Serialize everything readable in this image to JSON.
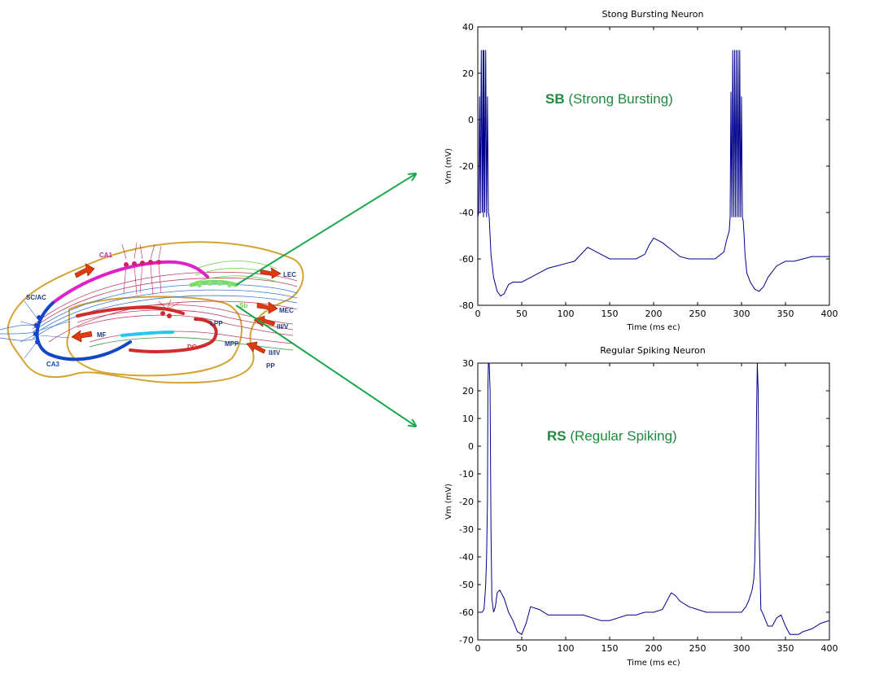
{
  "hippocampus": {
    "labels": {
      "ca1": "CA1",
      "ca3": "CA3",
      "dg": "DG",
      "scac": "SC/AC",
      "mf": "MF",
      "lpp": "LPP",
      "mpp": "MPP",
      "lec": "LEC",
      "mec": "MEC",
      "iiiv": "III/V",
      "iiiv2": "II/IV",
      "pp": "PP",
      "sb": "Sb"
    },
    "colors": {
      "outline": "#d4a332",
      "ca1": "#e020c8",
      "ca3": "#1446c8",
      "dg": "#d02c2c",
      "mossy": "#22c8f0",
      "subiculum": "#7ada6a",
      "arrow": "#e03a10",
      "connector": "#18a84a"
    }
  },
  "annotations": {
    "sb_abbr": "SB",
    "sb_text": " (Strong Bursting)",
    "rs_abbr": "RS",
    "rs_text": " (Regular Spiking)",
    "color": "#1e8a3e"
  },
  "chart_data": [
    {
      "type": "line",
      "title": "Stong Bursting Neuron",
      "xlabel": "Time (ms ec)",
      "ylabel": "Vm (mV)",
      "xlim": [
        0,
        400
      ],
      "ylim": [
        -80,
        40
      ],
      "xticks": [
        0,
        50,
        100,
        150,
        200,
        250,
        300,
        350,
        400
      ],
      "yticks": [
        -80,
        -60,
        -40,
        -20,
        0,
        20,
        40
      ],
      "grid": false,
      "series": [
        {
          "color": "#00008b",
          "x": [
            0,
            1,
            2,
            3,
            4,
            5,
            6,
            6.5,
            7,
            8,
            9,
            10,
            11,
            12,
            13,
            14,
            15,
            18,
            22,
            26,
            30,
            35,
            40,
            50,
            60,
            70,
            80,
            90,
            100,
            110,
            120,
            125,
            130,
            140,
            150,
            160,
            170,
            180,
            190,
            195,
            200,
            205,
            210,
            220,
            230,
            240,
            250,
            260,
            270,
            280,
            283,
            286,
            287,
            288,
            289,
            290,
            291,
            292,
            293,
            294,
            295,
            296,
            297,
            298,
            299,
            300,
            301,
            302,
            303,
            304,
            306,
            310,
            315,
            320,
            325,
            330,
            340,
            350,
            360,
            370,
            380,
            390,
            400
          ],
          "y": [
            -42,
            -40,
            10,
            -40,
            30,
            -40,
            30,
            -42,
            30,
            -40,
            30,
            -42,
            10,
            -40,
            -42,
            -50,
            -58,
            -68,
            -74,
            -76,
            -75,
            -71,
            -70,
            -70,
            -68,
            -66,
            -64,
            -63,
            -62,
            -61,
            -57,
            -55,
            -56,
            -58,
            -60,
            -60,
            -60,
            -60,
            -58,
            -54,
            -51,
            -52,
            -53,
            -56,
            -59,
            -60,
            -60,
            -60,
            -60,
            -57,
            -52,
            -48,
            -42,
            12,
            -42,
            30,
            -42,
            30,
            -42,
            30,
            -42,
            30,
            -42,
            30,
            -42,
            10,
            -42,
            -44,
            -50,
            -58,
            -66,
            -70,
            -73,
            -74,
            -72,
            -68,
            -63,
            -61,
            -61,
            -60,
            -59,
            -59,
            -59
          ]
        }
      ]
    },
    {
      "type": "line",
      "title": "Regular Spiking Neuron",
      "xlabel": "Time (ms ec)",
      "ylabel": "Vm (mV)",
      "xlim": [
        0,
        400
      ],
      "ylim": [
        -70,
        30
      ],
      "xticks": [
        0,
        50,
        100,
        150,
        200,
        250,
        300,
        350,
        400
      ],
      "yticks": [
        -70,
        -60,
        -50,
        -40,
        -30,
        -20,
        -10,
        0,
        10,
        20,
        30
      ],
      "grid": false,
      "series": [
        {
          "color": "#00008b",
          "x": [
            0,
            5,
            7,
            8,
            9,
            10,
            11,
            11.5,
            12,
            13,
            14,
            15,
            16,
            18,
            20,
            22,
            25,
            30,
            35,
            40,
            45,
            50,
            55,
            60,
            70,
            80,
            90,
            100,
            110,
            120,
            130,
            140,
            150,
            160,
            170,
            180,
            190,
            200,
            210,
            215,
            220,
            225,
            230,
            240,
            250,
            260,
            270,
            280,
            290,
            300,
            305,
            308,
            310,
            312,
            314,
            315,
            316,
            317,
            318,
            319,
            320,
            322,
            325,
            330,
            335,
            340,
            345,
            350,
            355,
            360,
            365,
            370,
            380,
            390,
            400
          ],
          "y": [
            -60,
            -60,
            -59,
            -55,
            -50,
            -40,
            -20,
            20,
            30,
            30,
            20,
            -30,
            -55,
            -60,
            -58,
            -53,
            -52,
            -55,
            -60,
            -63,
            -67,
            -68,
            -64,
            -58,
            -59,
            -61,
            -61,
            -61,
            -61,
            -61,
            -62,
            -63,
            -63,
            -62,
            -61,
            -61,
            -60,
            -60,
            -59,
            -56,
            -53,
            -54,
            -56,
            -58,
            -59,
            -60,
            -60,
            -60,
            -60,
            -60,
            -58,
            -56,
            -54,
            -52,
            -48,
            -42,
            -25,
            10,
            30,
            20,
            -30,
            -59,
            -61,
            -65,
            -65,
            -62,
            -61,
            -65,
            -68,
            -68,
            -68,
            -67,
            -66,
            -64,
            -63
          ]
        }
      ]
    }
  ]
}
